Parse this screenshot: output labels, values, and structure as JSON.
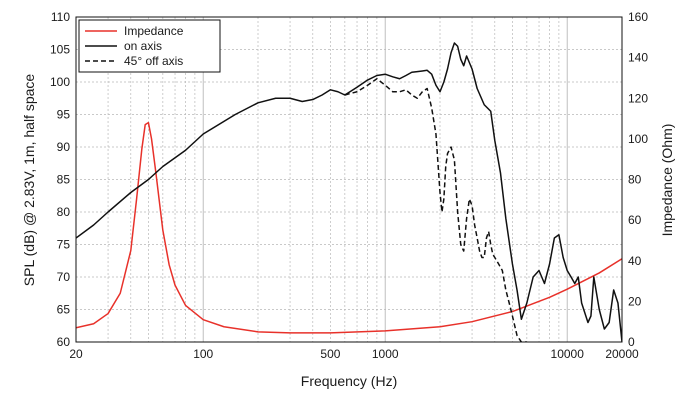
{
  "chart_data": {
    "type": "line",
    "xlabel": "Frequency (Hz)",
    "ylabel_left": "SPL (dB) @ 2.83V, 1m, half space",
    "ylabel_right": "Impedance (Ohm)",
    "x_scale": "log",
    "xlim": [
      20,
      20000
    ],
    "ylim_left": [
      60,
      110
    ],
    "ylim_right": [
      0,
      160
    ],
    "x_ticks": [
      20,
      100,
      500,
      1000,
      10000,
      20000
    ],
    "x_tick_labels": [
      "20",
      "100",
      "500",
      "1000",
      "10000",
      "20000"
    ],
    "y_ticks_left": [
      60,
      65,
      70,
      75,
      80,
      85,
      90,
      95,
      100,
      105,
      110
    ],
    "y_ticks_right": [
      0,
      20,
      40,
      60,
      80,
      100,
      120,
      140,
      160
    ],
    "grid": true,
    "legend_position": "top-left",
    "colors": {
      "impedance": "#e8312a",
      "on_axis": "#111111",
      "off_axis": "#111111",
      "grid": "#b8b8b8"
    },
    "series": [
      {
        "name": "Impedance",
        "axis": "right",
        "style": "solid",
        "color": "#e8312a",
        "x": [
          20,
          25,
          30,
          35,
          40,
          43,
          46,
          48,
          50,
          52,
          55,
          60,
          65,
          70,
          80,
          100,
          130,
          200,
          300,
          500,
          1000,
          2000,
          3000,
          5000,
          8000,
          10000,
          15000,
          20000
        ],
        "y": [
          7,
          9,
          14,
          24,
          45,
          70,
          95,
          107,
          108,
          100,
          83,
          55,
          38,
          28,
          18,
          11,
          7.5,
          5,
          4.5,
          4.5,
          5.5,
          7.5,
          10,
          15,
          22,
          26,
          34,
          41
        ]
      },
      {
        "name": "on axis",
        "axis": "left",
        "style": "solid",
        "color": "#111111",
        "x": [
          20,
          25,
          30,
          40,
          50,
          60,
          80,
          100,
          150,
          200,
          250,
          300,
          350,
          400,
          450,
          500,
          550,
          600,
          700,
          800,
          900,
          1000,
          1100,
          1200,
          1300,
          1400,
          1500,
          1600,
          1700,
          1800,
          1900,
          2000,
          2100,
          2200,
          2300,
          2400,
          2500,
          2600,
          2700,
          2800,
          3000,
          3200,
          3500,
          3800,
          4000,
          4300,
          4600,
          5000,
          5300,
          5600,
          6000,
          6500,
          7000,
          7500,
          8000,
          8500,
          9000,
          9500,
          10000,
          10500,
          11000,
          11500,
          12000,
          13000,
          13500,
          14000,
          15000,
          16000,
          17000,
          18000,
          19000,
          20000
        ],
        "y": [
          76,
          78,
          80,
          83,
          85,
          87,
          89.5,
          92,
          95,
          96.8,
          97.5,
          97.5,
          97,
          97.3,
          98,
          98.8,
          98.5,
          98,
          99.2,
          100.3,
          101,
          101.2,
          100.8,
          100.5,
          101,
          101.5,
          101.6,
          101.7,
          101.8,
          101.2,
          99.5,
          98.5,
          100,
          102,
          104.5,
          106,
          105.5,
          103.5,
          102.5,
          104,
          102,
          99,
          96.5,
          95.5,
          91,
          86,
          79,
          72,
          68,
          63.5,
          66,
          70,
          71,
          69,
          72,
          76,
          76.5,
          73,
          71,
          70,
          69,
          70,
          66,
          63,
          64,
          70,
          65,
          62,
          63,
          68,
          66,
          60
        ]
      },
      {
        "name": "45° off axis",
        "axis": "left",
        "style": "dashed",
        "color": "#111111",
        "x": [
          600,
          700,
          800,
          900,
          1000,
          1100,
          1200,
          1300,
          1400,
          1500,
          1600,
          1700,
          1800,
          1900,
          2000,
          2050,
          2100,
          2150,
          2200,
          2300,
          2400,
          2500,
          2600,
          2700,
          2800,
          2900,
          3000,
          3100,
          3200,
          3300,
          3400,
          3500,
          3600,
          3700,
          3800,
          3900,
          4000,
          4200,
          4400,
          4600,
          4800,
          5000,
          5300,
          5600,
          6000
        ],
        "y": [
          98,
          98.5,
          99.5,
          100.5,
          99.5,
          98.5,
          98.5,
          98.8,
          98,
          97.5,
          98.5,
          99,
          96,
          92,
          83,
          80,
          82,
          87,
          89,
          90,
          88,
          80,
          75,
          74,
          79,
          82,
          81,
          78,
          76,
          74,
          73,
          73,
          76,
          77,
          75,
          73.5,
          73,
          72,
          71,
          68,
          66,
          64,
          61,
          60,
          60
        ]
      }
    ]
  }
}
